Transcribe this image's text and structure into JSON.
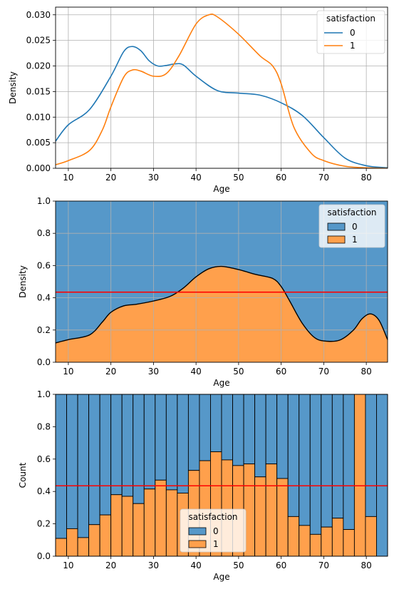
{
  "chart_data": [
    {
      "type": "line",
      "subtype": "kde",
      "xlabel": "Age",
      "ylabel": "Density",
      "xlim": [
        7,
        85
      ],
      "ylim": [
        0,
        0.0315
      ],
      "xticks": [
        10,
        20,
        30,
        40,
        50,
        60,
        70,
        80
      ],
      "yticks": [
        0.0,
        0.005,
        0.01,
        0.015,
        0.02,
        0.025,
        0.03
      ],
      "ytick_labels": [
        "0.000",
        "0.005",
        "0.010",
        "0.015",
        "0.020",
        "0.025",
        "0.030"
      ],
      "xtick_labels": [
        "10",
        "20",
        "30",
        "40",
        "50",
        "60",
        "70",
        "80"
      ],
      "grid": true,
      "legend": {
        "title": "satisfaction",
        "position": "top-right",
        "entries": [
          "0",
          "1"
        ]
      },
      "series": [
        {
          "name": "0",
          "color": "#1f77b4",
          "x": [
            7,
            10,
            15,
            20,
            23,
            25,
            27,
            29,
            31,
            33,
            35,
            37,
            40,
            45,
            50,
            55,
            60,
            65,
            70,
            75,
            80,
            85
          ],
          "y": [
            0.0053,
            0.0085,
            0.0115,
            0.018,
            0.0228,
            0.0238,
            0.023,
            0.021,
            0.02,
            0.0201,
            0.0204,
            0.0202,
            0.018,
            0.0152,
            0.0147,
            0.0143,
            0.0128,
            0.0103,
            0.006,
            0.002,
            0.0005,
            0.0001
          ]
        },
        {
          "name": "1",
          "color": "#ff7f0e",
          "x": [
            7,
            10,
            15,
            18,
            20,
            23,
            25,
            27,
            30,
            33,
            36,
            40,
            43,
            45,
            50,
            55,
            58,
            60,
            63,
            67,
            70,
            75,
            80,
            85
          ],
          "y": [
            0.0007,
            0.0015,
            0.0035,
            0.0075,
            0.012,
            0.0178,
            0.0192,
            0.019,
            0.018,
            0.0185,
            0.022,
            0.0282,
            0.03,
            0.0296,
            0.0262,
            0.022,
            0.02,
            0.0165,
            0.008,
            0.003,
            0.0015,
            0.0004,
            0.0001,
            0.0
          ]
        }
      ]
    },
    {
      "type": "area",
      "subtype": "kde-fill-stacked",
      "xlabel": "Age",
      "ylabel": "Density",
      "xlim": [
        7,
        85
      ],
      "ylim": [
        0,
        1.0
      ],
      "xticks": [
        10,
        20,
        30,
        40,
        50,
        60,
        70,
        80
      ],
      "yticks": [
        0.0,
        0.2,
        0.4,
        0.6,
        0.8,
        1.0
      ],
      "ytick_labels": [
        "0.0",
        "0.2",
        "0.4",
        "0.6",
        "0.8",
        "1.0"
      ],
      "xtick_labels": [
        "10",
        "20",
        "30",
        "40",
        "50",
        "60",
        "70",
        "80"
      ],
      "grid": true,
      "hline": {
        "y": 0.435,
        "color": "#ff0000"
      },
      "legend": {
        "title": "satisfaction",
        "position": "top-right",
        "entries": [
          "0",
          "1"
        ]
      },
      "series": [
        {
          "name": "0",
          "color": "#5698c9"
        },
        {
          "name": "1",
          "color": "#ffa04c",
          "x": [
            7,
            10,
            15,
            18,
            20,
            23,
            26,
            30,
            34,
            37,
            40,
            43,
            46,
            50,
            54,
            58,
            60,
            62,
            65,
            68,
            71,
            74,
            77,
            79,
            81,
            83,
            85
          ],
          "y": [
            0.12,
            0.14,
            0.17,
            0.25,
            0.31,
            0.35,
            0.36,
            0.38,
            0.41,
            0.46,
            0.53,
            0.58,
            0.595,
            0.575,
            0.545,
            0.52,
            0.47,
            0.38,
            0.24,
            0.15,
            0.13,
            0.14,
            0.2,
            0.27,
            0.3,
            0.26,
            0.14
          ]
        }
      ]
    },
    {
      "type": "bar",
      "subtype": "hist-fill-stacked",
      "xlabel": "Age",
      "ylabel": "Count",
      "xlim": [
        7,
        85
      ],
      "ylim": [
        0,
        1.0
      ],
      "xticks": [
        10,
        20,
        30,
        40,
        50,
        60,
        70,
        80
      ],
      "yticks": [
        0.0,
        0.2,
        0.4,
        0.6,
        0.8,
        1.0
      ],
      "ytick_labels": [
        "0.0",
        "0.2",
        "0.4",
        "0.6",
        "0.8",
        "1.0"
      ],
      "xtick_labels": [
        "10",
        "20",
        "30",
        "40",
        "50",
        "60",
        "70",
        "80"
      ],
      "grid": true,
      "hline": {
        "y": 0.435,
        "color": "#ff0000"
      },
      "legend": {
        "title": "satisfaction",
        "position": "bottom-center",
        "entries": [
          "0",
          "1"
        ]
      },
      "bin_start": 7,
      "bin_width": 2.6,
      "series": [
        {
          "name": "0",
          "color": "#5698c9"
        },
        {
          "name": "1",
          "color": "#ffa04c",
          "values": [
            0.11,
            0.17,
            0.115,
            0.195,
            0.255,
            0.38,
            0.37,
            0.325,
            0.415,
            0.47,
            0.41,
            0.39,
            0.53,
            0.59,
            0.645,
            0.595,
            0.56,
            0.57,
            0.49,
            0.57,
            0.48,
            0.245,
            0.19,
            0.135,
            0.18,
            0.235,
            0.165,
            1.0,
            0.245,
            0.0
          ]
        }
      ]
    }
  ]
}
